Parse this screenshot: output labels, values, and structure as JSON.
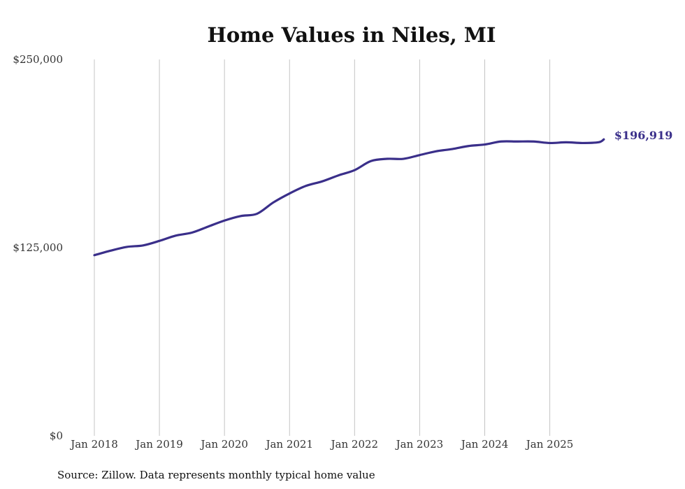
{
  "chart_data": {
    "type": "line",
    "title": "Home Values in Niles, MI",
    "xlabel": "",
    "ylabel": "",
    "ylim": [
      0,
      250000
    ],
    "yticks": [
      0,
      125000,
      250000
    ],
    "ytick_labels": [
      "$0",
      "$125,000",
      "$250,000"
    ],
    "xlim": [
      2018.0,
      2025.95
    ],
    "xticks": [
      2018,
      2019,
      2020,
      2021,
      2022,
      2023,
      2024,
      2025
    ],
    "xtick_labels": [
      "Jan 2018",
      "Jan 2019",
      "Jan 2020",
      "Jan 2021",
      "Jan 2022",
      "Jan 2023",
      "Jan 2024",
      "Jan 2025"
    ],
    "grid": "vertical",
    "series": [
      {
        "name": "Typical home value",
        "color": "#3a2f8a",
        "x": [
          2018.0,
          2018.25,
          2018.5,
          2018.75,
          2019.0,
          2019.25,
          2019.5,
          2019.75,
          2020.0,
          2020.25,
          2020.5,
          2020.75,
          2021.0,
          2021.25,
          2021.5,
          2021.75,
          2022.0,
          2022.25,
          2022.5,
          2022.75,
          2023.0,
          2023.25,
          2023.5,
          2023.75,
          2024.0,
          2024.25,
          2024.5,
          2024.75,
          2025.0,
          2025.25,
          2025.5,
          2025.75,
          2025.83
        ],
        "values": [
          120000,
          123000,
          125500,
          126500,
          129500,
          133000,
          135000,
          139000,
          143000,
          146000,
          147500,
          155000,
          161000,
          166000,
          169000,
          173000,
          176500,
          182500,
          184000,
          184000,
          186500,
          189000,
          190500,
          192500,
          193500,
          195500,
          195500,
          195500,
          194500,
          195000,
          194500,
          195000,
          196919
        ]
      }
    ],
    "end_label": "$196,919"
  },
  "footer": {
    "source": "Source: Zillow. Data represents monthly typical home value"
  }
}
